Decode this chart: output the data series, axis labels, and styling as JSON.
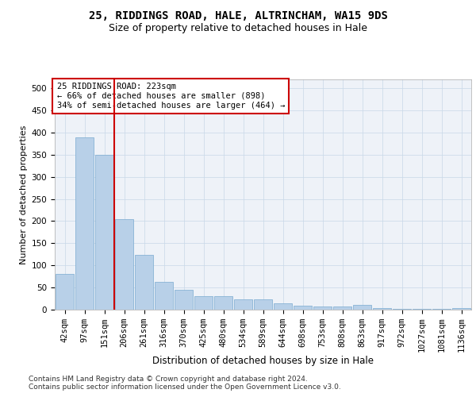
{
  "title1": "25, RIDDINGS ROAD, HALE, ALTRINCHAM, WA15 9DS",
  "title2": "Size of property relative to detached houses in Hale",
  "xlabel": "Distribution of detached houses by size in Hale",
  "ylabel": "Number of detached properties",
  "categories": [
    "42sqm",
    "97sqm",
    "151sqm",
    "206sqm",
    "261sqm",
    "316sqm",
    "370sqm",
    "425sqm",
    "480sqm",
    "534sqm",
    "589sqm",
    "644sqm",
    "698sqm",
    "753sqm",
    "808sqm",
    "863sqm",
    "917sqm",
    "972sqm",
    "1027sqm",
    "1081sqm",
    "1136sqm"
  ],
  "values": [
    80,
    390,
    350,
    205,
    123,
    63,
    45,
    31,
    31,
    24,
    24,
    15,
    9,
    8,
    7,
    10,
    4,
    2,
    2,
    2,
    4
  ],
  "bar_color": "#b8d0e8",
  "bar_edge_color": "#7aaad0",
  "vline_color": "#cc0000",
  "vline_x": 2.5,
  "annotation_line1": "25 RIDDINGS ROAD: 223sqm",
  "annotation_line2": "← 66% of detached houses are smaller (898)",
  "annotation_line3": "34% of semi-detached houses are larger (464) →",
  "annotation_box_color": "#ffffff",
  "annotation_box_edge": "#cc0000",
  "ylim": [
    0,
    520
  ],
  "yticks": [
    0,
    50,
    100,
    150,
    200,
    250,
    300,
    350,
    400,
    450,
    500
  ],
  "grid_color": "#c8d8e8",
  "background_color": "#eef2f8",
  "footer_line1": "Contains HM Land Registry data © Crown copyright and database right 2024.",
  "footer_line2": "Contains public sector information licensed under the Open Government Licence v3.0.",
  "title1_fontsize": 10,
  "title2_fontsize": 9,
  "xlabel_fontsize": 8.5,
  "ylabel_fontsize": 8,
  "tick_fontsize": 7.5,
  "annotation_fontsize": 7.5,
  "footer_fontsize": 6.5
}
